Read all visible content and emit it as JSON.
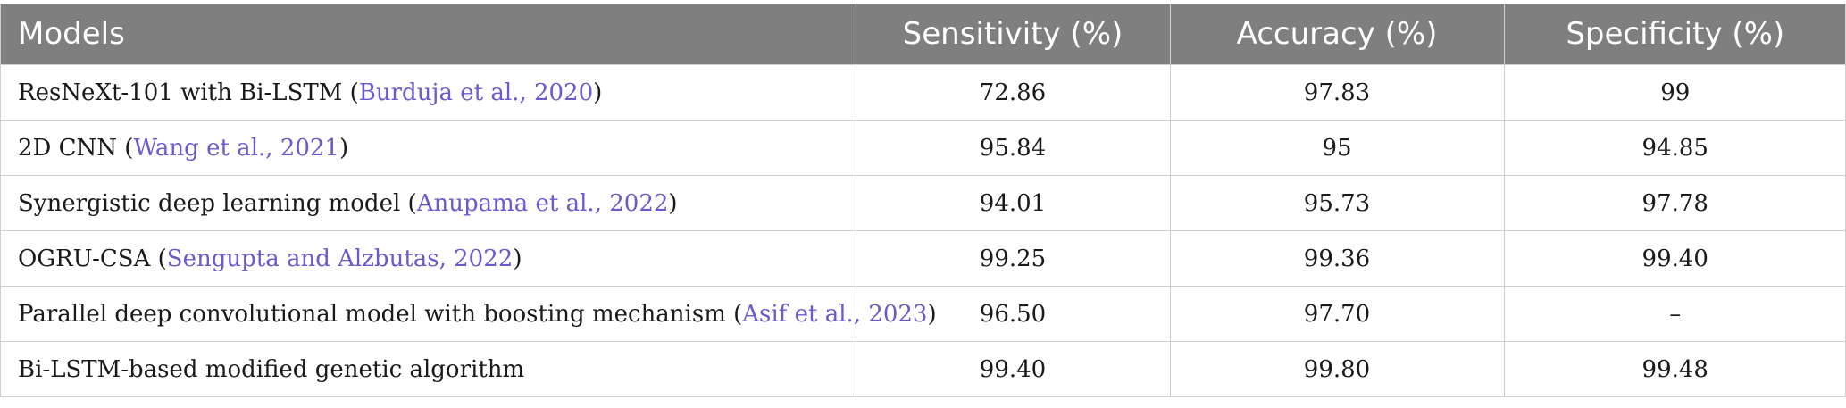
{
  "table": {
    "headers": [
      "Models",
      "Sensitivity (%)",
      "Accuracy (%)",
      "Specificity (%)"
    ],
    "rows": [
      {
        "model": "ResNeXt-101 with Bi-LSTM (",
        "ref": "Burduja et al., 2020",
        "close": ")",
        "sensitivity": "72.86",
        "accuracy": "97.83",
        "specificity": "99"
      },
      {
        "model": "2D CNN (",
        "ref": "Wang et al., 2021",
        "close": ")",
        "sensitivity": "95.84",
        "accuracy": "95",
        "specificity": "94.85"
      },
      {
        "model": "Synergistic deep learning model (",
        "ref": "Anupama et al., 2022",
        "close": ")",
        "sensitivity": "94.01",
        "accuracy": "95.73",
        "specificity": "97.78"
      },
      {
        "model": "OGRU-CSA (",
        "ref": "Sengupta and Alzbutas, 2022",
        "close": ")",
        "sensitivity": "99.25",
        "accuracy": "99.36",
        "specificity": "99.40"
      },
      {
        "model": "Parallel deep convolutional model with boosting mechanism (",
        "ref": "Asif et al., 2023",
        "close": ")",
        "sensitivity": "96.50",
        "accuracy": "97.70",
        "specificity": "–"
      },
      {
        "model": "Bi-LSTM-based modified genetic algorithm",
        "ref": "",
        "close": "",
        "sensitivity": "99.40",
        "accuracy": "99.80",
        "specificity": "99.48"
      }
    ]
  },
  "colors": {
    "header_bg": "#7f7f7f",
    "header_text": "#ffffff",
    "reference_link": "#6a5acd",
    "grid_line": "#cfcfcf"
  }
}
